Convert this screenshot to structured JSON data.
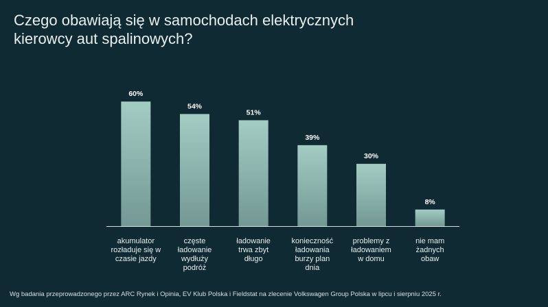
{
  "chart_data": {
    "type": "bar",
    "title": "Czego obawiają się w samochodach elektrycznych kierowcy aut spalinowych?",
    "categories": [
      "akumulator\nrozładuje się w\nczasie jazdy",
      "częste\nładowanie\nwydłuży\npodróż",
      "ładowanie\ntrwa zbyt\ndługo",
      "konieczność\nładowania\nburzy plan\ndnia",
      "problemy z\nładowaniem\nw domu",
      "nie mam\nżadnych\nobaw"
    ],
    "values": [
      60,
      54,
      51,
      39,
      30,
      8
    ],
    "value_labels": [
      "60%",
      "54%",
      "51%",
      "39%",
      "30%",
      "8%"
    ],
    "color": "#a3ccc3",
    "footnote": "Wg badania przeprowadzonego przez ARC Rynek i Opinia, EV Klub Polska i Fieldstat na zlecenie Volkswagen Group Polska w lipcu i sierpniu 2025 r."
  }
}
